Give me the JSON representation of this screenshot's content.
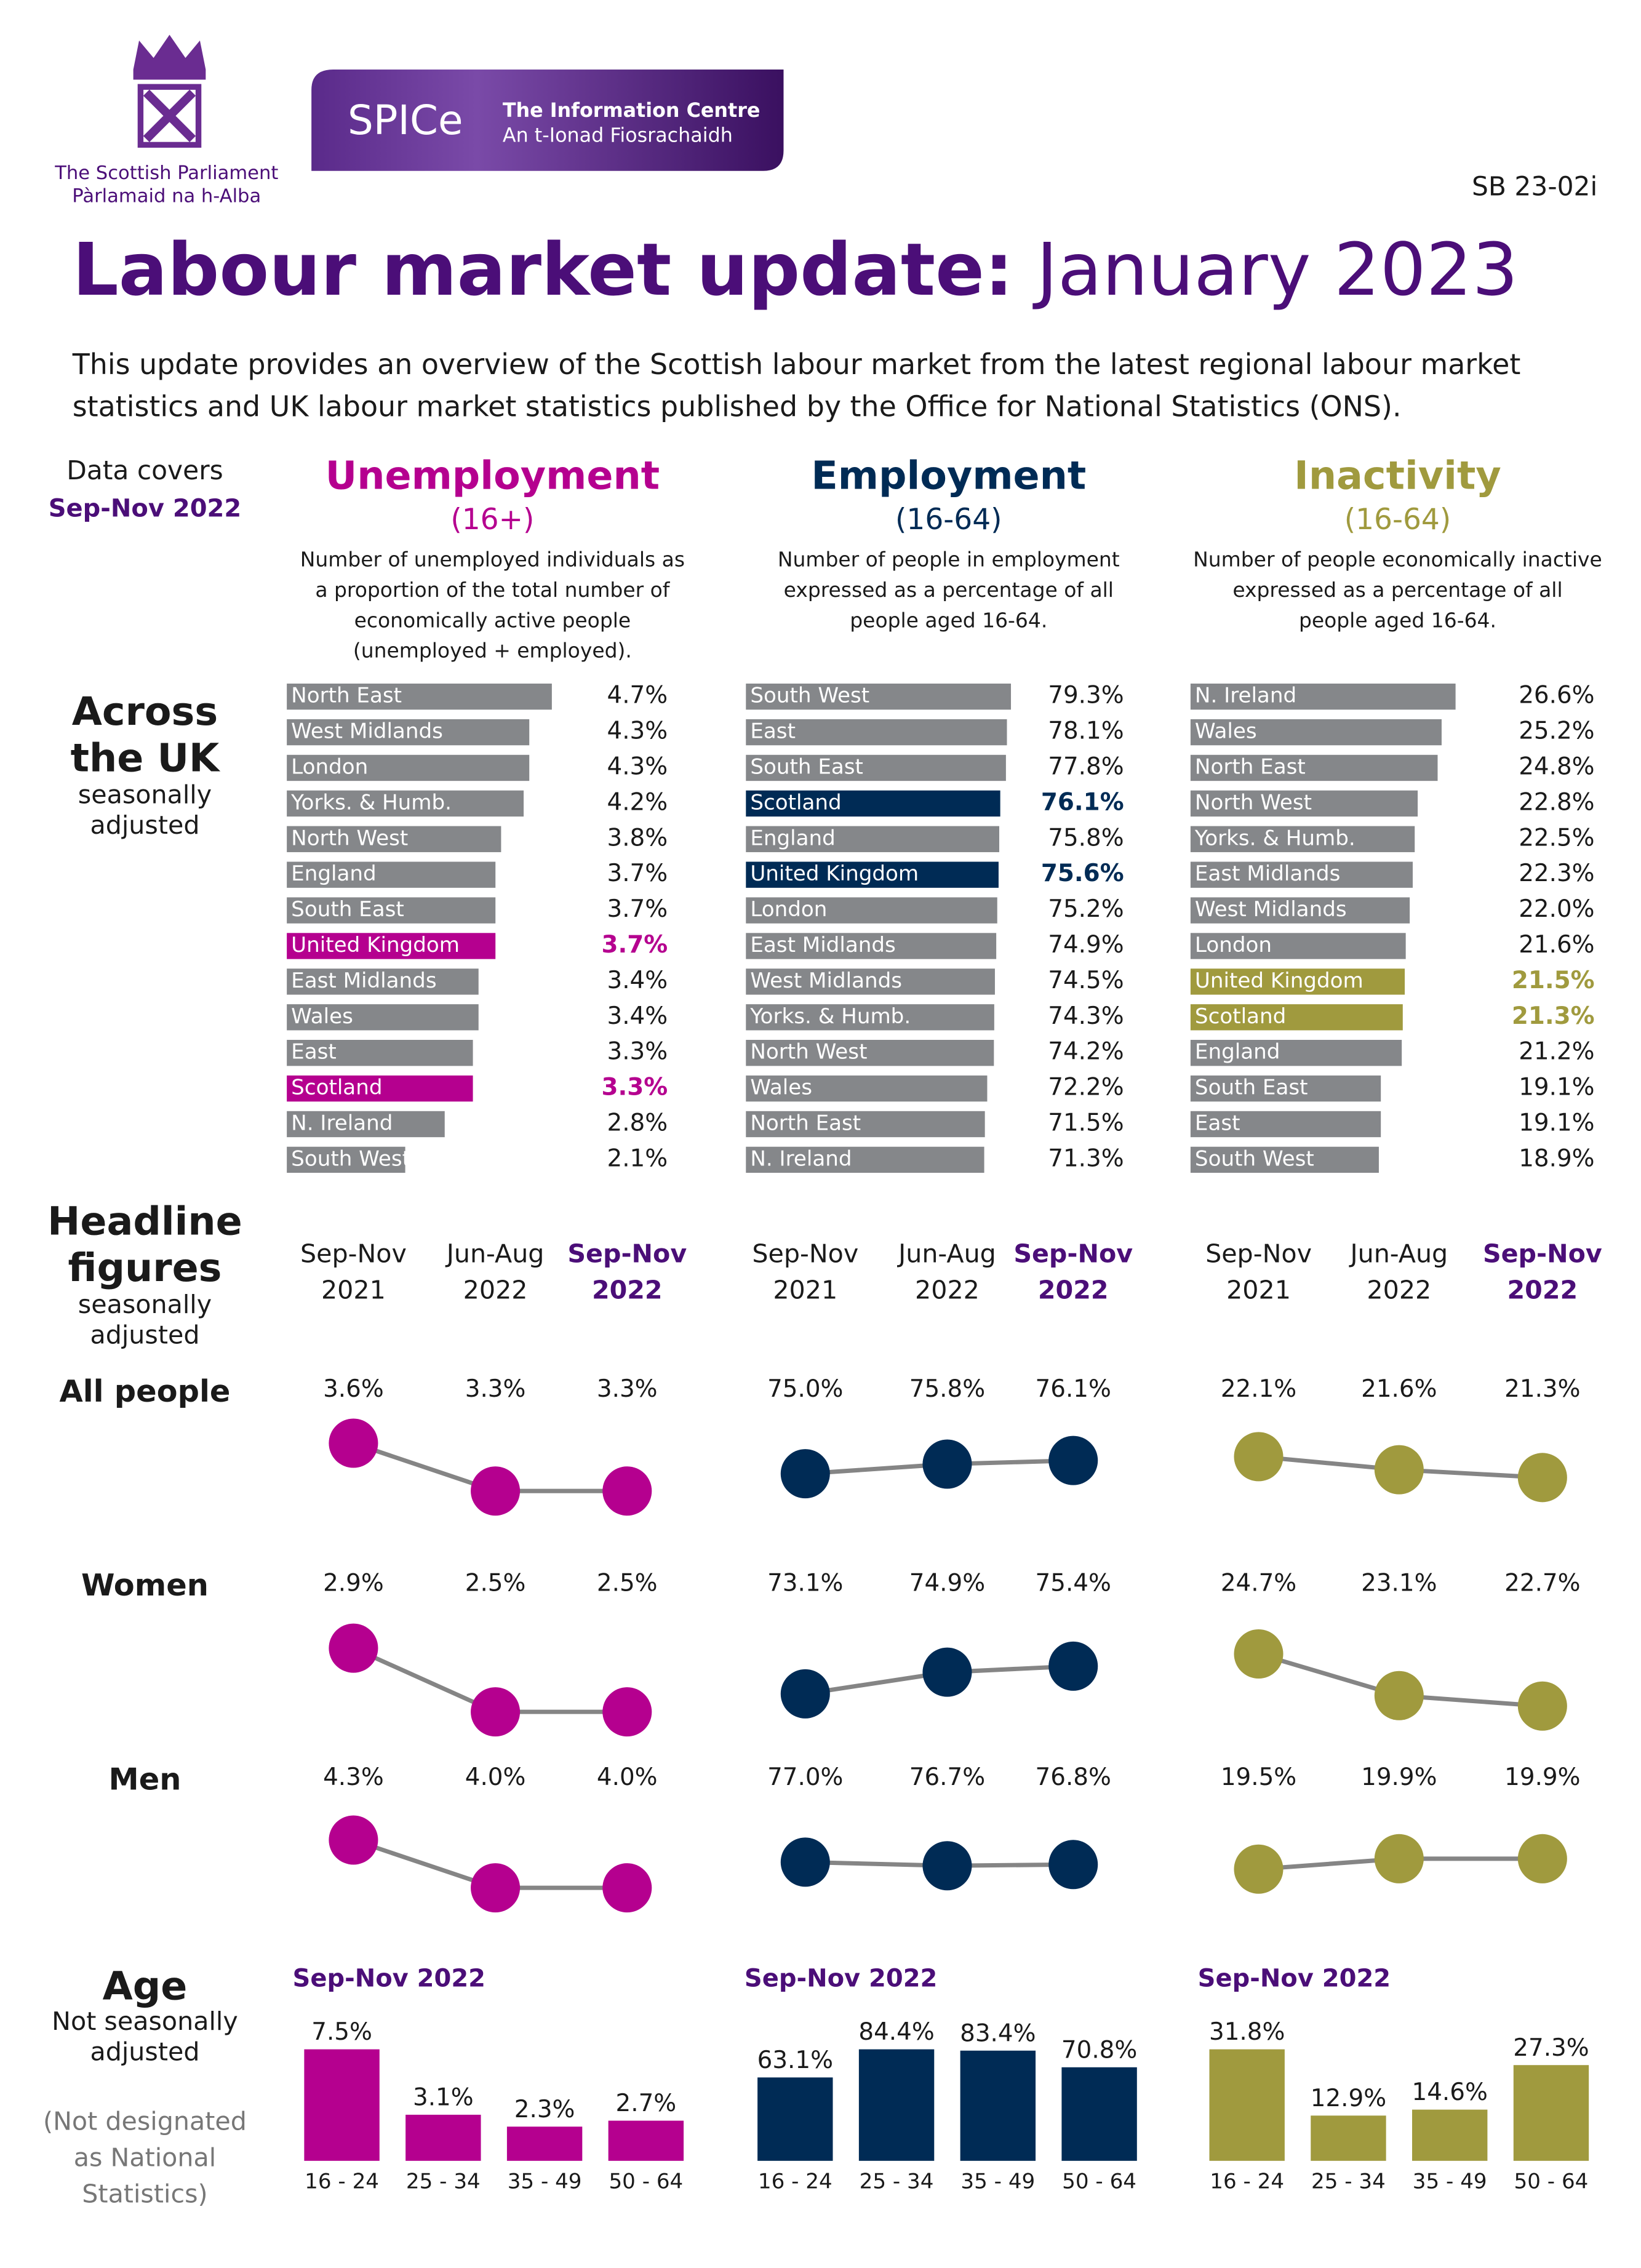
{
  "header": {
    "org": [
      "The Scottish Parliament",
      "Pàrlamaid na h-Alba"
    ],
    "logo": "SPICe",
    "centre": [
      "The Information Centre",
      "An t-Ionad Fiosrachaidh"
    ],
    "ref": "SB 23-02i",
    "title_bold": "Labour market update:",
    "title_light": "January 2023",
    "intro": [
      "This update provides an overview of the Scottish labour market from the latest regional labour market",
      "statistics and UK labour market statistics published by the Office for National Statistics (ONS)."
    ]
  },
  "coverage": {
    "label": "Data covers",
    "period": "Sep-Nov 2022"
  },
  "measures": [
    {
      "name": "Unemployment",
      "age": "(16+)",
      "color": "#b5008f",
      "description": [
        "Number of unemployed individuals as",
        "a proportion of the total number of",
        "economically active people",
        "(unemployed + employed)."
      ]
    },
    {
      "name": "Employment",
      "age": "(16-64)",
      "color": "#002b55",
      "description": [
        "Number of people in employment",
        "expressed as a percentage of all",
        "people aged 16-64."
      ]
    },
    {
      "name": "Inactivity",
      "age": "(16-64)",
      "color": "#a09a3e",
      "description": [
        "Number of people economically inactive",
        "expressed as a percentage of all",
        "people aged 16-64."
      ]
    }
  ],
  "sections": {
    "uk": {
      "title": [
        "Across",
        "the UK"
      ],
      "note": [
        "seasonally",
        "adjusted"
      ]
    },
    "headline": {
      "title": [
        "Headline",
        "figures"
      ],
      "note": [
        "seasonally",
        "adjusted"
      ]
    },
    "age": {
      "title": [
        "Age"
      ],
      "note": [
        "Not seasonally",
        "adjusted"
      ],
      "caveat": [
        "(Not designated",
        "as National",
        "Statistics)"
      ]
    }
  },
  "headline_rows": [
    "All people",
    "Women",
    "Men"
  ],
  "chart_data": [
    {
      "type": "bar",
      "orientation": "horizontal",
      "color": "#85878a",
      "categories": [
        "North East",
        "West Midlands",
        "London",
        "Yorks. & Humb.",
        "North West",
        "England",
        "South East",
        "United Kingdom",
        "East Midlands",
        "Wales",
        "East",
        "Scotland",
        "N. Ireland",
        "South West"
      ],
      "values": [
        4.7,
        4.3,
        4.3,
        4.2,
        3.8,
        3.7,
        3.7,
        3.7,
        3.4,
        3.4,
        3.3,
        3.3,
        2.8,
        2.1
      ],
      "value_labels": [
        "4.7%",
        "4.3%",
        "4.3%",
        "4.2%",
        "3.8%",
        "3.7%",
        "3.7%",
        "3.7%",
        "3.4%",
        "3.4%",
        "3.3%",
        "3.3%",
        "2.8%",
        "2.1%"
      ],
      "colors": [
        "#85878a",
        "#85878a",
        "#85878a",
        "#85878a",
        "#85878a",
        "#85878a",
        "#85878a",
        "#b5008f",
        "#85878a",
        "#85878a",
        "#85878a",
        "#b5008f",
        "#85878a",
        "#85878a"
      ]
    },
    {
      "type": "bar",
      "orientation": "horizontal",
      "color": "#85878a",
      "categories": [
        "South West",
        "East",
        "South East",
        "Scotland",
        "England",
        "United Kingdom",
        "London",
        "East Midlands",
        "West Midlands",
        "Yorks. & Humb.",
        "North West",
        "Wales",
        "North East",
        "N. Ireland"
      ],
      "values": [
        79.3,
        78.1,
        77.8,
        76.1,
        75.8,
        75.6,
        75.2,
        74.9,
        74.5,
        74.3,
        74.2,
        72.2,
        71.5,
        71.3
      ],
      "value_labels": [
        "79.3%",
        "78.1%",
        "77.8%",
        "76.1%",
        "75.8%",
        "75.6%",
        "75.2%",
        "74.9%",
        "74.5%",
        "74.3%",
        "74.2%",
        "72.2%",
        "71.5%",
        "71.3%"
      ],
      "colors": [
        "#85878a",
        "#85878a",
        "#85878a",
        "#002b55",
        "#85878a",
        "#002b55",
        "#85878a",
        "#85878a",
        "#85878a",
        "#85878a",
        "#85878a",
        "#85878a",
        "#85878a",
        "#85878a"
      ]
    },
    {
      "type": "bar",
      "orientation": "horizontal",
      "color": "#85878a",
      "categories": [
        "N. Ireland",
        "Wales",
        "North East",
        "North West",
        "Yorks. & Humb.",
        "East Midlands",
        "West Midlands",
        "London",
        "United Kingdom",
        "Scotland",
        "England",
        "South East",
        "East",
        "South West"
      ],
      "values": [
        26.6,
        25.2,
        24.8,
        22.8,
        22.5,
        22.3,
        22.0,
        21.6,
        21.5,
        21.3,
        21.2,
        19.1,
        19.1,
        18.9
      ],
      "value_labels": [
        "26.6%",
        "25.2%",
        "24.8%",
        "22.8%",
        "22.5%",
        "22.3%",
        "22.0%",
        "21.6%",
        "21.5%",
        "21.3%",
        "21.2%",
        "19.1%",
        "19.1%",
        "18.9%"
      ],
      "colors": [
        "#85878a",
        "#85878a",
        "#85878a",
        "#85878a",
        "#85878a",
        "#85878a",
        "#85878a",
        "#85878a",
        "#a09a3e",
        "#a09a3e",
        "#85878a",
        "#85878a",
        "#85878a",
        "#85878a"
      ]
    },
    {
      "type": "line",
      "color": "#b5008f",
      "line_color": "#858585",
      "categories": [
        [
          "Sep-Nov",
          "2021"
        ],
        [
          "Jun-Aug",
          "2022"
        ],
        [
          "Sep-Nov",
          "2022"
        ]
      ],
      "series": [
        {
          "values": [
            3.6,
            3.3,
            3.3
          ],
          "value_labels": [
            "3.6%",
            "3.3%",
            "3.3%"
          ]
        },
        {
          "values": [
            2.9,
            2.5,
            2.5
          ],
          "value_labels": [
            "2.9%",
            "2.5%",
            "2.5%"
          ]
        },
        {
          "values": [
            4.3,
            4.0,
            4.0
          ],
          "value_labels": [
            "4.3%",
            "4.0%",
            "4.0%"
          ]
        }
      ]
    },
    {
      "type": "line",
      "color": "#002b55",
      "line_color": "#858585",
      "categories": [
        [
          "Sep-Nov",
          "2021"
        ],
        [
          "Jun-Aug",
          "2022"
        ],
        [
          "Sep-Nov",
          "2022"
        ]
      ],
      "series": [
        {
          "values": [
            75.0,
            75.8,
            76.1
          ],
          "value_labels": [
            "75.0%",
            "75.8%",
            "76.1%"
          ]
        },
        {
          "values": [
            73.1,
            74.9,
            75.4
          ],
          "value_labels": [
            "73.1%",
            "74.9%",
            "75.4%"
          ]
        },
        {
          "values": [
            77.0,
            76.7,
            76.8
          ],
          "value_labels": [
            "77.0%",
            "76.7%",
            "76.8%"
          ]
        }
      ]
    },
    {
      "type": "line",
      "color": "#a09a3e",
      "line_color": "#858585",
      "categories": [
        [
          "Sep-Nov",
          "2021"
        ],
        [
          "Jun-Aug",
          "2022"
        ],
        [
          "Sep-Nov",
          "2022"
        ]
      ],
      "series": [
        {
          "values": [
            22.1,
            21.6,
            21.3
          ],
          "value_labels": [
            "22.1%",
            "21.6%",
            "21.3%"
          ]
        },
        {
          "values": [
            24.7,
            23.1,
            22.7
          ],
          "value_labels": [
            "24.7%",
            "23.1%",
            "22.7%"
          ]
        },
        {
          "values": [
            19.5,
            19.9,
            19.9
          ],
          "value_labels": [
            "19.5%",
            "19.9%",
            "19.9%"
          ]
        }
      ]
    },
    {
      "type": "bar",
      "orientation": "vertical",
      "color": "#b5008f",
      "title": "Sep-Nov 2022",
      "categories": [
        "16 - 24",
        "25 - 34",
        "35 - 49",
        "50 - 64"
      ],
      "values": [
        7.5,
        3.1,
        2.3,
        2.7
      ],
      "value_labels": [
        "7.5%",
        "3.1%",
        "2.3%",
        "2.7%"
      ]
    },
    {
      "type": "bar",
      "orientation": "vertical",
      "color": "#002b55",
      "title": "Sep-Nov 2022",
      "categories": [
        "16 - 24",
        "25 - 34",
        "35 - 49",
        "50 - 64"
      ],
      "values": [
        63.1,
        84.4,
        83.4,
        70.8
      ],
      "value_labels": [
        "63.1%",
        "84.4%",
        "83.4%",
        "70.8%"
      ]
    },
    {
      "type": "bar",
      "orientation": "vertical",
      "color": "#a09a3e",
      "title": "Sep-Nov 2022",
      "categories": [
        "16 - 24",
        "25 - 34",
        "35 - 49",
        "50 - 64"
      ],
      "values": [
        31.8,
        12.9,
        14.6,
        27.3
      ],
      "value_labels": [
        "31.8%",
        "12.9%",
        "14.6%",
        "27.3%"
      ]
    }
  ]
}
